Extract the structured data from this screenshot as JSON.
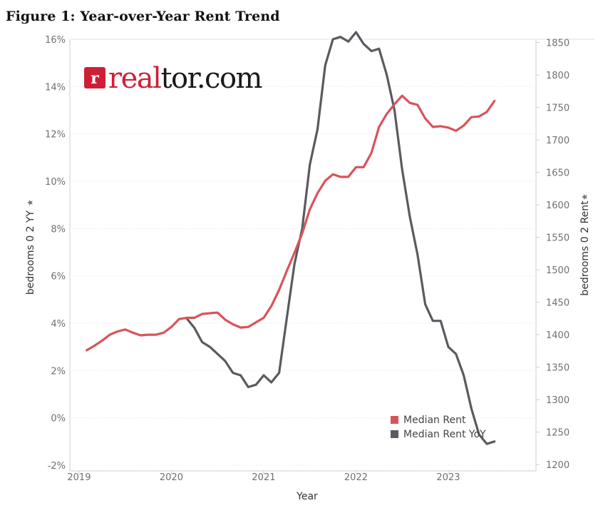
{
  "figure_title": "Figure 1: Year-over-Year Rent Trend",
  "logo": {
    "brand": "realtor.com",
    "mark": "r",
    "part_red": "real",
    "part_dark": "tor.com"
  },
  "colors": {
    "rent": "#d9535b",
    "yoy": "#5a5a60",
    "grid": "#e6e6e6",
    "axis": "#cfcfcf",
    "logo_red": "#cf1f36"
  },
  "chart_data": {
    "type": "line",
    "title": "Figure 1: Year-over-Year Rent Trend",
    "xlabel": "Year",
    "ylabel_left": "bedrooms 0 2 YY",
    "ylabel_right": "bedrooms 0 2 Rent",
    "x_ticks": [
      "2019",
      "2020",
      "2021",
      "2022",
      "2023"
    ],
    "x_range": [
      2018.9,
      2023.95
    ],
    "y_left_ticks": [
      "-2%",
      "0%",
      "2%",
      "4%",
      "6%",
      "8%",
      "10%",
      "12%",
      "14%",
      "16%"
    ],
    "y_left_range": [
      -2.0,
      16.0
    ],
    "y_right_ticks": [
      "1200",
      "1250",
      "1300",
      "1350",
      "1400",
      "1450",
      "1500",
      "1550",
      "1600",
      "1650",
      "1700",
      "1750",
      "1800",
      "1850"
    ],
    "y_right_range": [
      1199,
      1855
    ],
    "grid": true,
    "legend_position": "bottom-right",
    "series": [
      {
        "name": "Median Rent",
        "axis": "right",
        "points": [
          [
            2019.083,
            1376
          ],
          [
            2019.167,
            1383
          ],
          [
            2019.25,
            1391
          ],
          [
            2019.333,
            1400
          ],
          [
            2019.417,
            1405
          ],
          [
            2019.5,
            1408
          ],
          [
            2019.583,
            1403
          ],
          [
            2019.667,
            1399
          ],
          [
            2019.75,
            1400
          ],
          [
            2019.833,
            1400
          ],
          [
            2019.917,
            1403
          ],
          [
            2020.0,
            1412
          ],
          [
            2020.083,
            1424
          ],
          [
            2020.167,
            1426
          ],
          [
            2020.25,
            1426
          ],
          [
            2020.333,
            1432
          ],
          [
            2020.417,
            1433
          ],
          [
            2020.5,
            1434
          ],
          [
            2020.583,
            1423
          ],
          [
            2020.667,
            1416
          ],
          [
            2020.75,
            1411
          ],
          [
            2020.833,
            1412
          ],
          [
            2020.917,
            1419
          ],
          [
            2021.0,
            1426
          ],
          [
            2021.083,
            1444
          ],
          [
            2021.167,
            1469
          ],
          [
            2021.25,
            1498
          ],
          [
            2021.333,
            1526
          ],
          [
            2021.417,
            1556
          ],
          [
            2021.5,
            1593
          ],
          [
            2021.583,
            1618
          ],
          [
            2021.667,
            1637
          ],
          [
            2021.75,
            1647
          ],
          [
            2021.833,
            1643
          ],
          [
            2021.917,
            1643
          ],
          [
            2022.0,
            1658
          ],
          [
            2022.083,
            1658
          ],
          [
            2022.167,
            1680
          ],
          [
            2022.25,
            1720
          ],
          [
            2022.333,
            1740
          ],
          [
            2022.417,
            1755
          ],
          [
            2022.5,
            1768
          ],
          [
            2022.583,
            1757
          ],
          [
            2022.667,
            1754
          ],
          [
            2022.75,
            1733
          ],
          [
            2022.833,
            1720
          ],
          [
            2022.917,
            1721
          ],
          [
            2023.0,
            1719
          ],
          [
            2023.083,
            1714
          ],
          [
            2023.167,
            1722
          ],
          [
            2023.25,
            1735
          ],
          [
            2023.333,
            1736
          ],
          [
            2023.417,
            1743
          ],
          [
            2023.5,
            1760
          ]
        ]
      },
      {
        "name": "Median Rent YoY",
        "axis": "left",
        "points": [
          [
            2020.167,
            4.2
          ],
          [
            2020.25,
            3.8
          ],
          [
            2020.333,
            3.2
          ],
          [
            2020.417,
            3.0
          ],
          [
            2020.5,
            2.7
          ],
          [
            2020.583,
            2.4
          ],
          [
            2020.667,
            1.9
          ],
          [
            2020.75,
            1.8
          ],
          [
            2020.833,
            1.3
          ],
          [
            2020.917,
            1.4
          ],
          [
            2021.0,
            1.8
          ],
          [
            2021.083,
            1.5
          ],
          [
            2021.167,
            1.9
          ],
          [
            2021.25,
            4.2
          ],
          [
            2021.333,
            6.5
          ],
          [
            2021.417,
            8.0
          ],
          [
            2021.5,
            10.7
          ],
          [
            2021.583,
            12.2
          ],
          [
            2021.667,
            14.9
          ],
          [
            2021.75,
            16.0
          ],
          [
            2021.833,
            16.1
          ],
          [
            2021.917,
            15.9
          ],
          [
            2022.0,
            16.3
          ],
          [
            2022.083,
            15.8
          ],
          [
            2022.167,
            15.5
          ],
          [
            2022.25,
            15.6
          ],
          [
            2022.333,
            14.5
          ],
          [
            2022.417,
            13.0
          ],
          [
            2022.5,
            10.5
          ],
          [
            2022.583,
            8.5
          ],
          [
            2022.667,
            6.9
          ],
          [
            2022.75,
            4.8
          ],
          [
            2022.833,
            4.1
          ],
          [
            2022.917,
            4.1
          ],
          [
            2023.0,
            3.0
          ],
          [
            2023.083,
            2.7
          ],
          [
            2023.167,
            1.8
          ],
          [
            2023.25,
            0.4
          ],
          [
            2023.333,
            -0.7
          ],
          [
            2023.417,
            -1.1
          ],
          [
            2023.5,
            -1.0
          ]
        ]
      }
    ]
  }
}
